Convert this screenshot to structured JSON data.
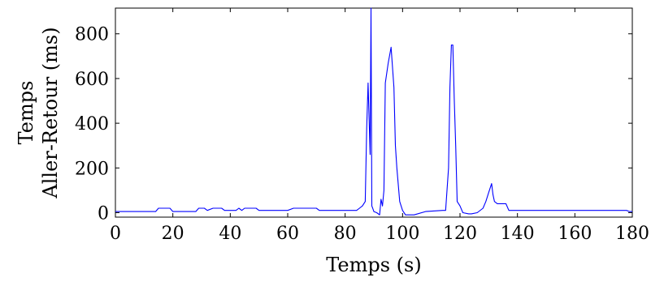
{
  "chart_data": {
    "type": "line",
    "title": "",
    "xlabel": "Temps (s)",
    "ylabel_lines": [
      "Temps",
      "Aller-Retour (ms)"
    ],
    "xlim": [
      0,
      180
    ],
    "ylim": [
      -20,
      915
    ],
    "x_ticks": [
      0,
      20,
      40,
      60,
      80,
      100,
      120,
      140,
      160,
      180
    ],
    "y_ticks": [
      0,
      200,
      400,
      600,
      800
    ],
    "grid": false,
    "line_color": "#0000ff",
    "series": [
      {
        "x": [
          0,
          14,
          15,
          19,
          20,
          28,
          29,
          31,
          32,
          34,
          35,
          37,
          38,
          42,
          43,
          44,
          45,
          46,
          47,
          49,
          50,
          60,
          62,
          70,
          71,
          84,
          85,
          86,
          87,
          87.5,
          88,
          88.7,
          89,
          89.3,
          89.6,
          90,
          91,
          92,
          92.5,
          93,
          93.5,
          94,
          95,
          96,
          97,
          97.5,
          98,
          99,
          100,
          101,
          102,
          104,
          108,
          114,
          115,
          116,
          116.5,
          117,
          117.5,
          118,
          118.5,
          119,
          120,
          121,
          123,
          124,
          126,
          128,
          129,
          130,
          131,
          131.5,
          132,
          133,
          134,
          136,
          137,
          138,
          160,
          170,
          178,
          179,
          180
        ],
        "y": [
          5,
          5,
          20,
          20,
          5,
          5,
          20,
          20,
          10,
          20,
          20,
          20,
          10,
          10,
          20,
          10,
          20,
          20,
          20,
          20,
          10,
          10,
          20,
          20,
          10,
          10,
          20,
          30,
          50,
          380,
          580,
          260,
          915,
          30,
          20,
          5,
          0,
          -10,
          60,
          30,
          100,
          580,
          670,
          740,
          560,
          300,
          200,
          50,
          10,
          -10,
          -10,
          -10,
          5,
          10,
          10,
          200,
          560,
          750,
          750,
          510,
          300,
          50,
          30,
          0,
          -5,
          -5,
          0,
          20,
          50,
          90,
          130,
          80,
          50,
          40,
          40,
          40,
          10,
          10,
          10,
          10,
          10,
          5,
          5
        ]
      }
    ]
  }
}
